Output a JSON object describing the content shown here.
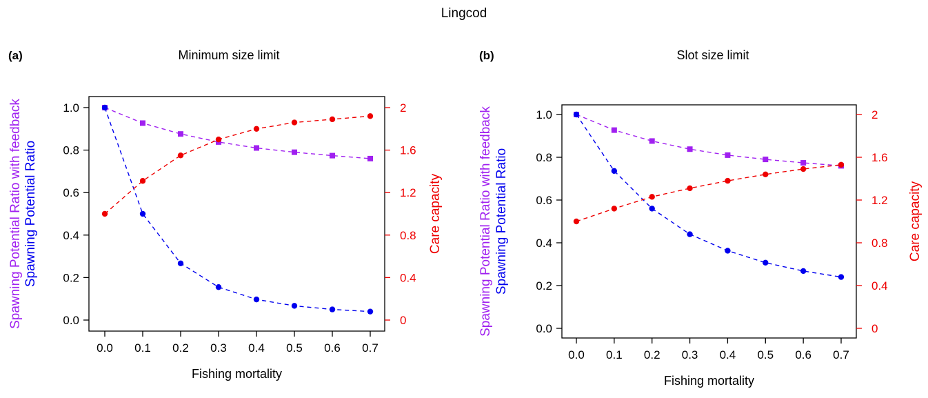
{
  "figure_title": "Lingcod",
  "colors": {
    "spr": "#0000EE",
    "spr_feedback": "#A020F0",
    "care_capacity": "#EE0000",
    "axis": "#000000"
  },
  "chart_data": [
    {
      "type": "scatter",
      "panel_label": "(a)",
      "title": "Minimum size limit",
      "xlabel": "Fishing mortality",
      "ylabel_left_lines": [
        "Spawning Potential Ratio with feedback",
        "Spawning Potential Ratio"
      ],
      "ylabel_right": "Care capacity",
      "x": [
        0.0,
        0.1,
        0.2,
        0.3,
        0.4,
        0.5,
        0.6,
        0.7
      ],
      "xticks": [
        "0.0",
        "0.1",
        "0.2",
        "0.3",
        "0.4",
        "0.5",
        "0.6",
        "0.7"
      ],
      "xlim": [
        0.0,
        0.7
      ],
      "ylim_left": [
        0.0,
        1.0
      ],
      "yticks_left": [
        "0.0",
        "0.2",
        "0.4",
        "0.6",
        "0.8",
        "1.0"
      ],
      "ylim_right": [
        0.0,
        2.0
      ],
      "yticks_right": [
        "0",
        "0.4",
        "0.8",
        "1.2",
        "1.6",
        "2"
      ],
      "series": [
        {
          "name": "Spawning Potential Ratio with feedback",
          "axis": "left",
          "marker": "square",
          "color_key": "spr_feedback",
          "values": [
            1.0,
            0.927,
            0.876,
            0.838,
            0.81,
            0.79,
            0.774,
            0.76
          ]
        },
        {
          "name": "Spawning Potential Ratio",
          "axis": "left",
          "marker": "circle",
          "color_key": "spr",
          "values": [
            1.0,
            0.5,
            0.267,
            0.155,
            0.097,
            0.067,
            0.05,
            0.04
          ]
        },
        {
          "name": "Care capacity",
          "axis": "right",
          "marker": "circle",
          "color_key": "care_capacity",
          "values": [
            1.0,
            1.31,
            1.55,
            1.7,
            1.8,
            1.86,
            1.89,
            1.92
          ]
        }
      ]
    },
    {
      "type": "scatter",
      "panel_label": "(b)",
      "title": "Slot size limit",
      "xlabel": "Fishing mortality",
      "ylabel_left_lines": [
        "Spawning Potential Ratio with feedback",
        "Spawning Potential Ratio"
      ],
      "ylabel_right": "Care capacity",
      "x": [
        0.0,
        0.1,
        0.2,
        0.3,
        0.4,
        0.5,
        0.6,
        0.7
      ],
      "xticks": [
        "0.0",
        "0.1",
        "0.2",
        "0.3",
        "0.4",
        "0.5",
        "0.6",
        "0.7"
      ],
      "xlim": [
        0.0,
        0.7
      ],
      "ylim_left": [
        0.0,
        1.0
      ],
      "yticks_left": [
        "0.0",
        "0.2",
        "0.4",
        "0.6",
        "0.8",
        "1.0"
      ],
      "ylim_right": [
        0.0,
        2.0
      ],
      "yticks_right": [
        "0",
        "0.4",
        "0.8",
        "1.2",
        "1.6",
        "2"
      ],
      "series": [
        {
          "name": "Spawning Potential Ratio with feedback",
          "axis": "left",
          "marker": "square",
          "color_key": "spr_feedback",
          "values": [
            1.0,
            0.927,
            0.876,
            0.838,
            0.81,
            0.79,
            0.774,
            0.76
          ]
        },
        {
          "name": "Spawning Potential Ratio",
          "axis": "left",
          "marker": "circle",
          "color_key": "spr",
          "values": [
            1.0,
            0.736,
            0.56,
            0.44,
            0.363,
            0.307,
            0.268,
            0.24
          ]
        },
        {
          "name": "Care capacity",
          "axis": "right",
          "marker": "circle",
          "color_key": "care_capacity",
          "values": [
            1.0,
            1.12,
            1.23,
            1.31,
            1.38,
            1.44,
            1.49,
            1.53
          ]
        }
      ]
    }
  ]
}
